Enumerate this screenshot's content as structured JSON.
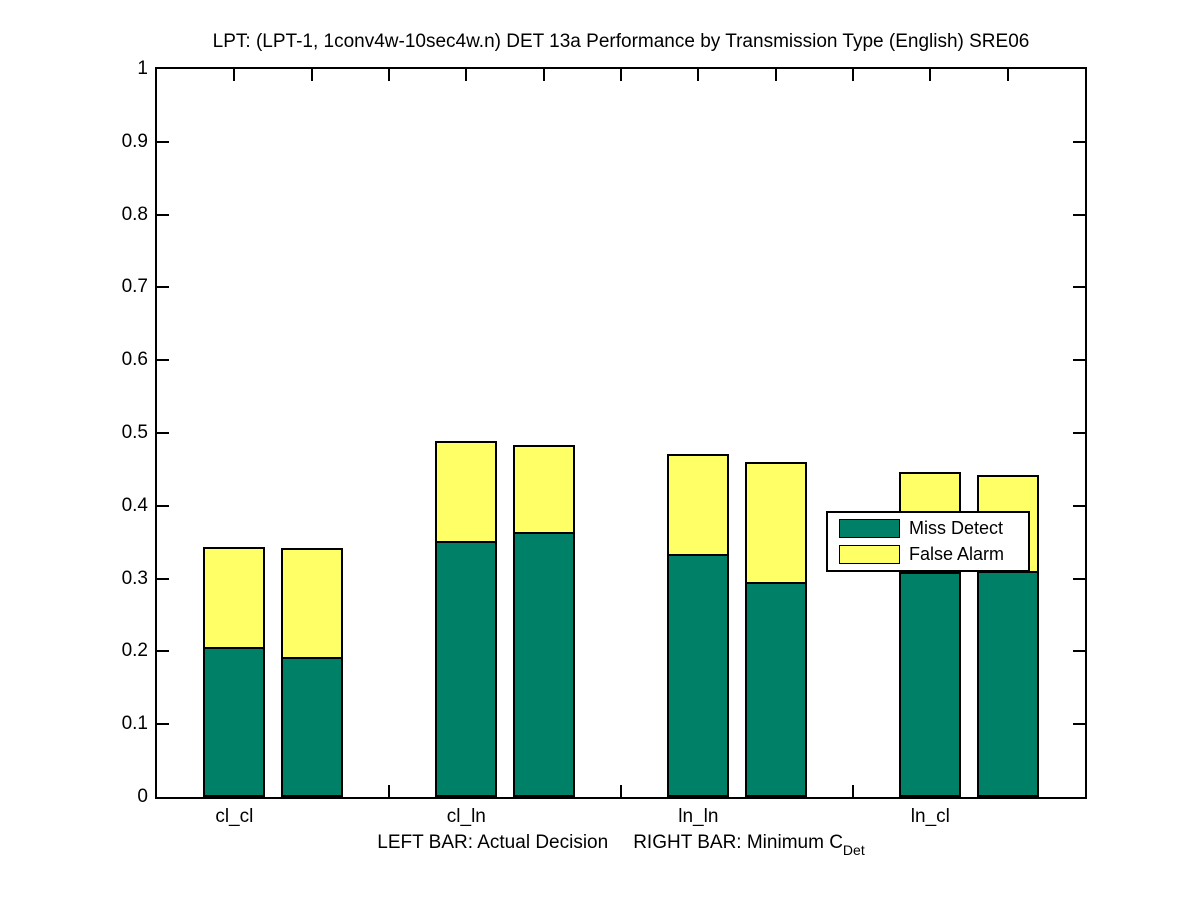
{
  "chart_data": {
    "type": "bar",
    "stacked": true,
    "title": "LPT: (LPT-1, 1conv4w-10sec4w.n) DET 13a Performance by Transmission Type (English) SRE06",
    "xlabel_left": "LEFT BAR: Actual Decision",
    "xlabel_right": "RIGHT BAR: Minimum C",
    "xlabel_subscript": "Det",
    "categories": [
      "cl_cl",
      "cl_ln",
      "ln_ln",
      "ln_cl"
    ],
    "ylim": [
      0,
      1
    ],
    "yticks": [
      "0",
      "0.1",
      "0.2",
      "0.3",
      "0.4",
      "0.5",
      "0.6",
      "0.7",
      "0.8",
      "0.9",
      "1"
    ],
    "grid": false,
    "legend": {
      "position": "middle-right overlay",
      "entries": [
        "Miss Detect",
        "False Alarm"
      ]
    },
    "series": [
      {
        "name": "Actual Decision (left bar of each pair)",
        "miss_detect": [
          0.206,
          0.351,
          0.334,
          0.309
        ],
        "false_alarm": [
          0.137,
          0.137,
          0.137,
          0.137
        ]
      },
      {
        "name": "Minimum CDet (right bar of each pair)",
        "miss_detect": [
          0.192,
          0.364,
          0.296,
          0.311
        ],
        "false_alarm": [
          0.15,
          0.119,
          0.165,
          0.132
        ]
      }
    ],
    "colors": {
      "miss_detect": "#008066",
      "false_alarm": "#FFFF66",
      "axis": "#000000",
      "legend_bg": "#FFFFFF"
    }
  }
}
